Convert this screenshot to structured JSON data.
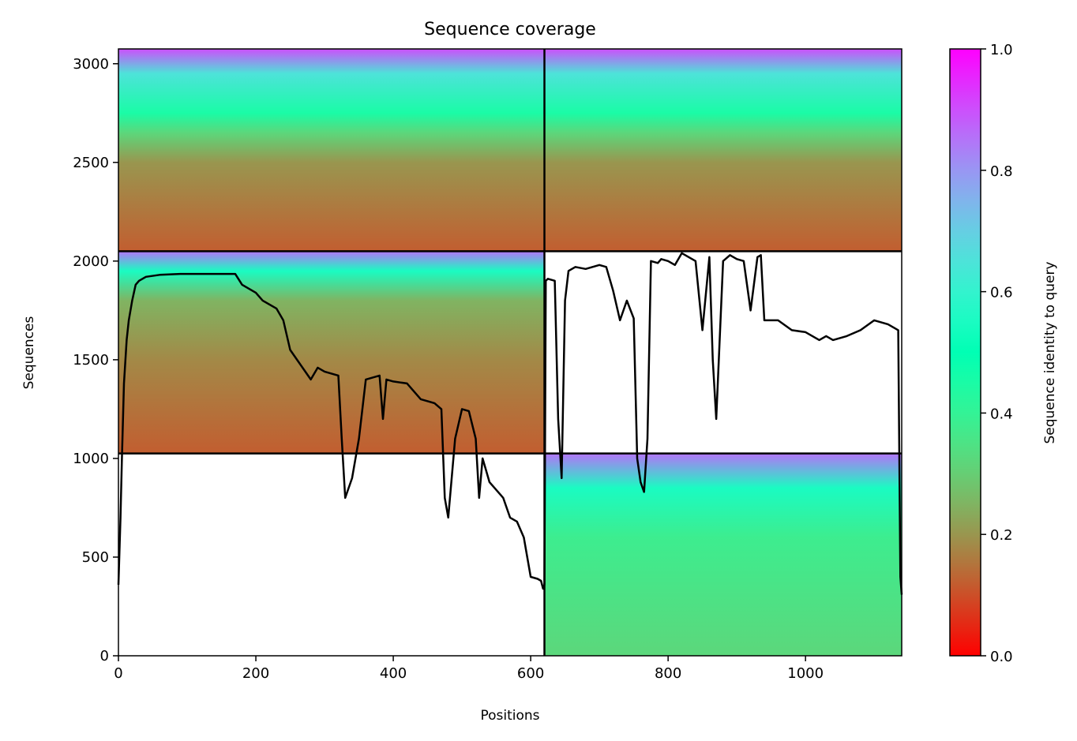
{
  "chart_data": {
    "type": "heatmap",
    "title": "Sequence coverage",
    "xlabel": "Positions",
    "ylabel": "Sequences",
    "xlim": [
      0,
      1140
    ],
    "ylim": [
      0,
      3075
    ],
    "x_ticks": [
      0,
      200,
      400,
      600,
      800,
      1000
    ],
    "x_tick_labels": [
      "0",
      "200",
      "400",
      "600",
      "800",
      "1000"
    ],
    "y_ticks": [
      0,
      500,
      1000,
      1500,
      2000,
      2500,
      3000
    ],
    "y_tick_labels": [
      "0",
      "500",
      "1000",
      "1500",
      "2000",
      "2500",
      "3000"
    ],
    "colorbar": {
      "label": "Sequence identity to query",
      "range": [
        0,
        1
      ],
      "ticks": [
        0.0,
        0.2,
        0.4,
        0.6,
        0.8,
        1.0
      ],
      "tick_labels": [
        "0.0",
        "0.2",
        "0.4",
        "0.6",
        "0.8",
        "1.0"
      ],
      "colormap": "rainbow_r"
    },
    "chain_boundaries": {
      "x": [
        620
      ],
      "y": [
        1025,
        2050
      ]
    },
    "blocks": [
      {
        "name": "chain-1-bottom",
        "x": [
          0,
          620
        ],
        "y": [
          0,
          1025
        ],
        "empty": true
      },
      {
        "name": "chain-2-bottom",
        "x": [
          620,
          1140
        ],
        "y": [
          0,
          1025
        ],
        "identity_stops": [
          [
            0,
            0.32
          ],
          [
            600,
            0.38
          ],
          [
            850,
            0.55
          ],
          [
            1025,
            0.85
          ]
        ]
      },
      {
        "name": "chain-1-middle",
        "x": [
          0,
          620
        ],
        "y": [
          1025,
          2050
        ],
        "identity_stops": [
          [
            1025,
            0.12
          ],
          [
            1500,
            0.18
          ],
          [
            1800,
            0.25
          ],
          [
            1950,
            0.55
          ],
          [
            2050,
            0.85
          ]
        ]
      },
      {
        "name": "chain-2-middle",
        "x": [
          620,
          1140
        ],
        "y": [
          1025,
          2050
        ],
        "empty": true
      },
      {
        "name": "chain-1-top",
        "x": [
          0,
          620
        ],
        "y": [
          2050,
          3075
        ],
        "identity_stops": [
          [
            2050,
            0.12
          ],
          [
            2500,
            0.2
          ],
          [
            2650,
            0.32
          ],
          [
            2750,
            0.45
          ],
          [
            2950,
            0.65
          ],
          [
            3075,
            0.9
          ]
        ]
      },
      {
        "name": "chain-2-top",
        "x": [
          620,
          1140
        ],
        "y": [
          2050,
          3075
        ],
        "identity_stops": [
          [
            2050,
            0.12
          ],
          [
            2500,
            0.2
          ],
          [
            2650,
            0.32
          ],
          [
            2750,
            0.45
          ],
          [
            2950,
            0.65
          ],
          [
            3075,
            0.9
          ]
        ]
      }
    ],
    "coverage_line": {
      "color": "#000000",
      "x": [
        0,
        3,
        5,
        8,
        12,
        15,
        20,
        25,
        30,
        40,
        60,
        90,
        120,
        170,
        180,
        200,
        210,
        230,
        240,
        250,
        260,
        270,
        280,
        290,
        300,
        310,
        320,
        325,
        330,
        340,
        350,
        360,
        370,
        380,
        385,
        390,
        400,
        420,
        440,
        460,
        470,
        475,
        480,
        490,
        500,
        510,
        520,
        525,
        530,
        540,
        560,
        570,
        580,
        590,
        600,
        610,
        615,
        618,
        620,
        622,
        625,
        635,
        640,
        645,
        650,
        655,
        660,
        665,
        680,
        700,
        710,
        720,
        730,
        740,
        750,
        755,
        760,
        765,
        770,
        775,
        785,
        790,
        800,
        810,
        820,
        840,
        850,
        860,
        865,
        870,
        880,
        890,
        900,
        910,
        920,
        930,
        935,
        940,
        960,
        980,
        1000,
        1020,
        1030,
        1040,
        1060,
        1080,
        1100,
        1120,
        1130,
        1135,
        1138,
        1140
      ],
      "y": [
        360,
        700,
        1000,
        1380,
        1600,
        1700,
        1800,
        1880,
        1900,
        1920,
        1930,
        1935,
        1935,
        1935,
        1880,
        1840,
        1800,
        1760,
        1700,
        1550,
        1500,
        1450,
        1400,
        1460,
        1440,
        1430,
        1420,
        1100,
        800,
        900,
        1100,
        1400,
        1410,
        1420,
        1200,
        1400,
        1390,
        1380,
        1300,
        1280,
        1250,
        800,
        700,
        1100,
        1250,
        1240,
        1100,
        800,
        1000,
        880,
        800,
        700,
        680,
        600,
        400,
        390,
        380,
        340,
        360,
        1900,
        1910,
        1900,
        1200,
        900,
        1800,
        1950,
        1960,
        1970,
        1960,
        1980,
        1970,
        1850,
        1700,
        1800,
        1710,
        1000,
        880,
        830,
        1100,
        2000,
        1990,
        2010,
        2000,
        1980,
        2040,
        2000,
        1650,
        2020,
        1500,
        1200,
        2000,
        2030,
        2010,
        2000,
        1750,
        2020,
        2030,
        1700,
        1700,
        1650,
        1640,
        1600,
        1620,
        1600,
        1620,
        1650,
        1700,
        1680,
        1660,
        1650,
        400,
        310
      ]
    }
  }
}
